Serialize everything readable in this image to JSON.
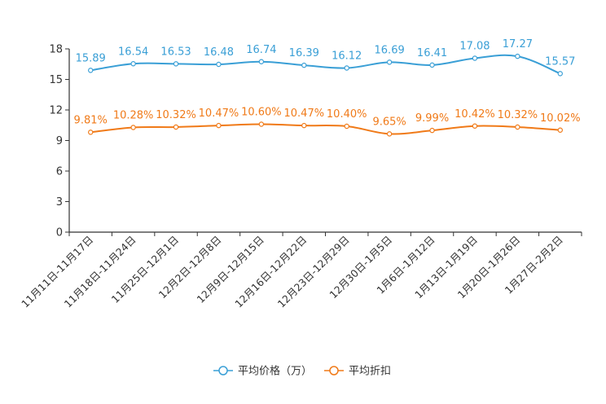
{
  "chart_data": {
    "type": "line",
    "title": "",
    "xlabel": "",
    "ylabel": "",
    "ylim": [
      0,
      18
    ],
    "yticks": [
      0,
      3,
      6,
      9,
      12,
      15,
      18
    ],
    "grid": false,
    "legend_position": "bottom",
    "categories": [
      "11月11日-11月17日",
      "11月18日-11月24日",
      "11月25日-12月1日",
      "12月2日-12月8日",
      "12月9日-12月15日",
      "12月16日-12月22日",
      "12月23日-12月29日",
      "12月30日-1月5日",
      "1月6日-1月12日",
      "1月13日-1月19日",
      "1月20日-1月26日",
      "1月27日-2月2日"
    ],
    "series": [
      {
        "name": "平均价格（万）",
        "color": "#3a9fd6",
        "values": [
          15.89,
          16.54,
          16.53,
          16.48,
          16.74,
          16.39,
          16.12,
          16.69,
          16.41,
          17.08,
          17.27,
          15.57
        ],
        "labels": [
          "15.89",
          "16.54",
          "16.53",
          "16.48",
          "16.74",
          "16.39",
          "16.12",
          "16.69",
          "16.41",
          "17.08",
          "17.27",
          "15.57"
        ]
      },
      {
        "name": "平均折扣",
        "color": "#f07a18",
        "values": [
          9.81,
          10.28,
          10.32,
          10.47,
          10.6,
          10.47,
          10.4,
          9.65,
          9.99,
          10.42,
          10.32,
          10.02
        ],
        "labels": [
          "9.81%",
          "10.28%",
          "10.32%",
          "10.47%",
          "10.60%",
          "10.47%",
          "10.40%",
          "9.65%",
          "9.99%",
          "10.42%",
          "10.32%",
          "10.02%"
        ]
      }
    ]
  }
}
